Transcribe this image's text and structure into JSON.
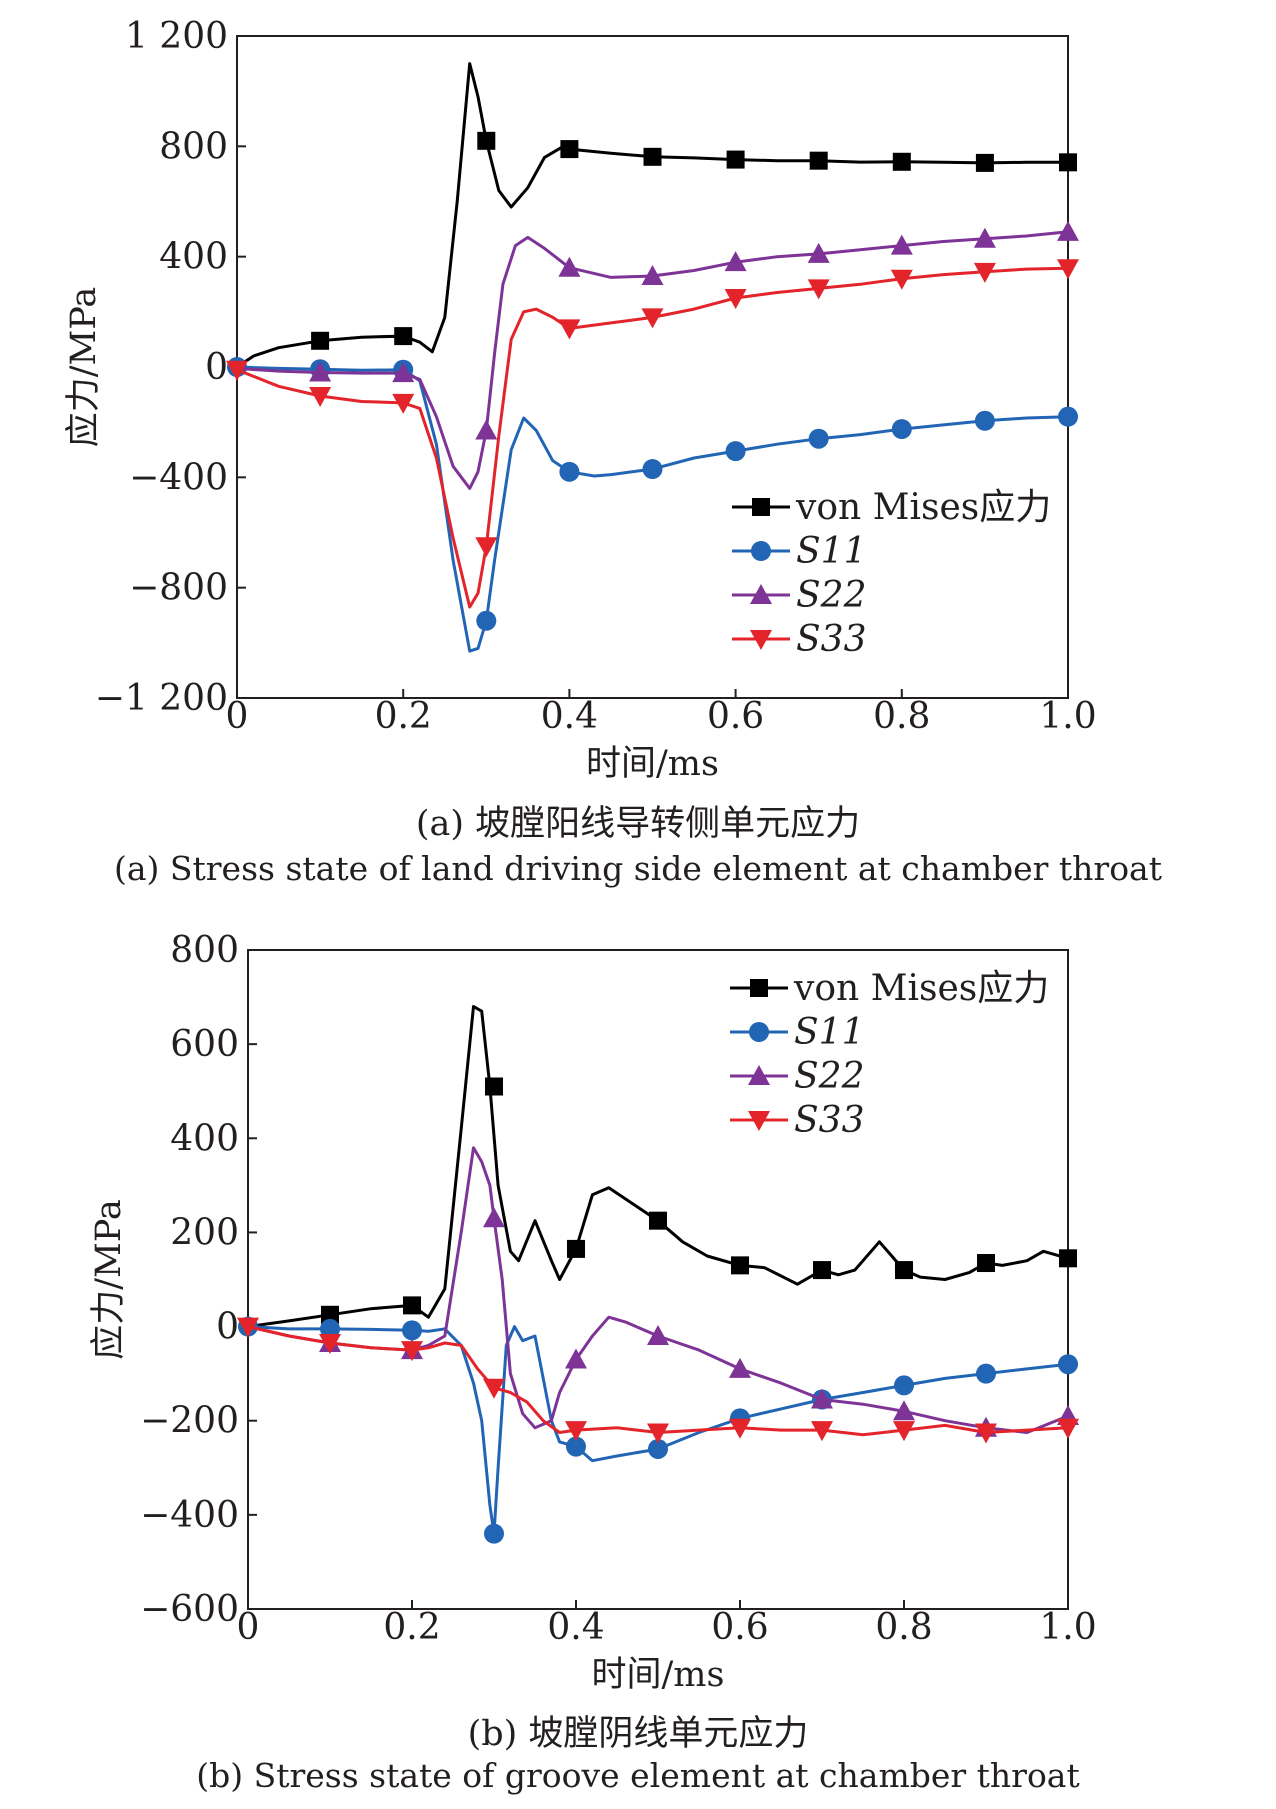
{
  "chart_data": [
    {
      "type": "line",
      "xlabel": "时间/ms",
      "ylabel": "应力/MPa",
      "xlim": [
        0,
        1.0
      ],
      "ylim": [
        -1200,
        1200
      ],
      "x_ticks": [
        0,
        0.2,
        0.4,
        0.6,
        0.8,
        1.0
      ],
      "x_tick_labels": [
        "0",
        "0.2",
        "0.4",
        "0.6",
        "0.8",
        "1.0"
      ],
      "y_ticks": [
        1200,
        800,
        400,
        0,
        -400,
        -800,
        -1200
      ],
      "y_tick_labels": [
        "1 200",
        "800",
        "400",
        "0",
        "−400",
        "−800",
        "−1 200"
      ],
      "legend_position": "bottom-right",
      "caption_zh": "(a) 坡膛阳线导转侧单元应力",
      "caption_en": "(a) Stress state of land driving side element at chamber throat",
      "series": [
        {
          "name": "von Mises应力",
          "color": "#000000",
          "marker": "square",
          "x": [
            0,
            0.02,
            0.05,
            0.1,
            0.15,
            0.2,
            0.22,
            0.235,
            0.25,
            0.265,
            0.28,
            0.29,
            0.3,
            0.315,
            0.33,
            0.35,
            0.37,
            0.39,
            0.4,
            0.45,
            0.5,
            0.55,
            0.6,
            0.65,
            0.7,
            0.75,
            0.8,
            0.85,
            0.9,
            0.95,
            1.0
          ],
          "y": [
            0,
            40,
            70,
            95,
            108,
            112,
            90,
            55,
            180,
            600,
            1100,
            980,
            820,
            640,
            580,
            650,
            760,
            795,
            790,
            775,
            762,
            758,
            752,
            748,
            748,
            743,
            744,
            742,
            740,
            742,
            742
          ],
          "marker_x": [
            0.1,
            0.2,
            0.3,
            0.4,
            0.5,
            0.6,
            0.7,
            0.8,
            0.9,
            1.0
          ],
          "marker_y": [
            95,
            112,
            820,
            790,
            762,
            752,
            748,
            744,
            740,
            742
          ]
        },
        {
          "name": "S11",
          "color": "#2265b5",
          "marker": "circle",
          "x": [
            0,
            0.05,
            0.1,
            0.15,
            0.2,
            0.22,
            0.24,
            0.26,
            0.28,
            0.29,
            0.3,
            0.31,
            0.33,
            0.345,
            0.36,
            0.38,
            0.4,
            0.43,
            0.45,
            0.5,
            0.55,
            0.6,
            0.65,
            0.7,
            0.75,
            0.8,
            0.85,
            0.9,
            0.95,
            1.0
          ],
          "y": [
            0,
            -5,
            -8,
            -12,
            -10,
            -50,
            -280,
            -700,
            -1030,
            -1020,
            -920,
            -700,
            -300,
            -185,
            -230,
            -340,
            -380,
            -395,
            -390,
            -370,
            -330,
            -305,
            -280,
            -260,
            -245,
            -225,
            -210,
            -195,
            -185,
            -180
          ],
          "marker_x": [
            0,
            0.1,
            0.2,
            0.3,
            0.4,
            0.5,
            0.6,
            0.7,
            0.8,
            0.9,
            1.0
          ],
          "marker_y": [
            0,
            -8,
            -10,
            -920,
            -380,
            -370,
            -305,
            -260,
            -225,
            -195,
            -180
          ]
        },
        {
          "name": "S22",
          "color": "#7e3496",
          "marker": "triangle-up",
          "x": [
            0,
            0.05,
            0.1,
            0.15,
            0.2,
            0.22,
            0.24,
            0.26,
            0.28,
            0.29,
            0.3,
            0.31,
            0.32,
            0.335,
            0.35,
            0.37,
            0.4,
            0.45,
            0.5,
            0.55,
            0.6,
            0.65,
            0.7,
            0.75,
            0.8,
            0.85,
            0.9,
            0.95,
            1.0
          ],
          "y": [
            -5,
            -15,
            -20,
            -22,
            -22,
            -45,
            -180,
            -360,
            -440,
            -380,
            -230,
            50,
            300,
            440,
            470,
            430,
            360,
            325,
            330,
            350,
            380,
            400,
            410,
            425,
            440,
            455,
            465,
            475,
            490
          ],
          "marker_x": [
            0.1,
            0.2,
            0.3,
            0.4,
            0.5,
            0.6,
            0.7,
            0.8,
            0.9,
            1.0
          ],
          "marker_y": [
            -20,
            -22,
            -230,
            360,
            330,
            380,
            410,
            440,
            465,
            490
          ]
        },
        {
          "name": "S33",
          "color": "#e3242b",
          "marker": "triangle-down",
          "x": [
            0,
            0.05,
            0.1,
            0.15,
            0.2,
            0.22,
            0.24,
            0.26,
            0.28,
            0.29,
            0.3,
            0.315,
            0.33,
            0.345,
            0.36,
            0.38,
            0.4,
            0.45,
            0.5,
            0.55,
            0.6,
            0.65,
            0.7,
            0.75,
            0.8,
            0.85,
            0.9,
            0.95,
            1.0
          ],
          "y": [
            -10,
            -70,
            -105,
            -125,
            -130,
            -150,
            -330,
            -620,
            -870,
            -820,
            -650,
            -250,
            100,
            200,
            210,
            180,
            140,
            160,
            180,
            210,
            250,
            270,
            285,
            300,
            320,
            335,
            345,
            355,
            358
          ],
          "marker_x": [
            0,
            0.1,
            0.2,
            0.3,
            0.4,
            0.5,
            0.6,
            0.7,
            0.8,
            0.9,
            1.0
          ],
          "marker_y": [
            -10,
            -105,
            -130,
            -650,
            140,
            180,
            250,
            285,
            320,
            345,
            358
          ]
        }
      ]
    },
    {
      "type": "line",
      "xlabel": "时间/ms",
      "ylabel": "应力/MPa",
      "xlim": [
        0,
        1.0
      ],
      "ylim": [
        -600,
        800
      ],
      "x_ticks": [
        0,
        0.2,
        0.4,
        0.6,
        0.8,
        1.0
      ],
      "x_tick_labels": [
        "0",
        "0.2",
        "0.4",
        "0.6",
        "0.8",
        "1.0"
      ],
      "y_ticks": [
        800,
        600,
        400,
        200,
        0,
        -200,
        -400,
        -600
      ],
      "y_tick_labels": [
        "800",
        "600",
        "400",
        "200",
        "0",
        "−200",
        "−400",
        "−600"
      ],
      "legend_position": "top-right",
      "caption_zh": "(b) 坡膛阴线单元应力",
      "caption_en": "(b) Stress state of groove element at chamber throat",
      "series": [
        {
          "name": "von Mises应力",
          "color": "#000000",
          "marker": "square",
          "x": [
            0,
            0.05,
            0.1,
            0.15,
            0.2,
            0.22,
            0.24,
            0.26,
            0.275,
            0.285,
            0.295,
            0.305,
            0.32,
            0.33,
            0.35,
            0.37,
            0.38,
            0.4,
            0.42,
            0.44,
            0.47,
            0.5,
            0.53,
            0.56,
            0.6,
            0.63,
            0.67,
            0.7,
            0.72,
            0.74,
            0.77,
            0.8,
            0.82,
            0.85,
            0.88,
            0.9,
            0.92,
            0.95,
            0.97,
            1.0
          ],
          "y": [
            0,
            12,
            25,
            38,
            45,
            20,
            80,
            420,
            680,
            670,
            510,
            300,
            160,
            140,
            225,
            140,
            100,
            165,
            280,
            295,
            260,
            225,
            180,
            150,
            130,
            125,
            90,
            120,
            110,
            120,
            180,
            120,
            105,
            100,
            115,
            135,
            130,
            140,
            160,
            145
          ],
          "marker_x": [
            0.1,
            0.2,
            0.3,
            0.4,
            0.5,
            0.6,
            0.7,
            0.8,
            0.9,
            1.0
          ],
          "marker_y": [
            25,
            45,
            510,
            165,
            225,
            130,
            120,
            120,
            135,
            145
          ]
        },
        {
          "name": "S11",
          "color": "#2265b5",
          "marker": "circle",
          "x": [
            0,
            0.05,
            0.1,
            0.15,
            0.2,
            0.22,
            0.24,
            0.26,
            0.275,
            0.285,
            0.295,
            0.3,
            0.305,
            0.315,
            0.325,
            0.335,
            0.35,
            0.37,
            0.38,
            0.4,
            0.42,
            0.45,
            0.5,
            0.55,
            0.6,
            0.65,
            0.7,
            0.75,
            0.8,
            0.85,
            0.9,
            0.95,
            1.0
          ],
          "y": [
            0,
            -5,
            -5,
            -6,
            -8,
            -10,
            -5,
            -40,
            -120,
            -200,
            -380,
            -440,
            -300,
            -40,
            0,
            -30,
            -20,
            -200,
            -245,
            -255,
            -285,
            -275,
            -260,
            -225,
            -195,
            -175,
            -155,
            -140,
            -125,
            -110,
            -100,
            -90,
            -80
          ],
          "marker_x": [
            0,
            0.1,
            0.2,
            0.3,
            0.4,
            0.5,
            0.6,
            0.7,
            0.8,
            0.9,
            1.0
          ],
          "marker_y": [
            0,
            -5,
            -8,
            -440,
            -255,
            -260,
            -195,
            -155,
            -125,
            -100,
            -80
          ]
        },
        {
          "name": "S22",
          "color": "#7e3496",
          "marker": "triangle-up",
          "x": [
            0,
            0.05,
            0.1,
            0.15,
            0.2,
            0.22,
            0.24,
            0.26,
            0.275,
            0.285,
            0.295,
            0.3,
            0.31,
            0.32,
            0.335,
            0.35,
            0.37,
            0.38,
            0.4,
            0.42,
            0.44,
            0.46,
            0.5,
            0.55,
            0.6,
            0.65,
            0.7,
            0.75,
            0.8,
            0.85,
            0.9,
            0.95,
            1.0
          ],
          "y": [
            0,
            -20,
            -35,
            -45,
            -50,
            -40,
            -20,
            200,
            380,
            350,
            300,
            230,
            100,
            -100,
            -185,
            -215,
            -200,
            -140,
            -70,
            -20,
            20,
            10,
            -20,
            -50,
            -90,
            -120,
            -155,
            -165,
            -180,
            -200,
            -215,
            -225,
            -190
          ],
          "marker_x": [
            0.1,
            0.2,
            0.3,
            0.4,
            0.5,
            0.6,
            0.7,
            0.8,
            0.9,
            1.0
          ],
          "marker_y": [
            -35,
            -50,
            230,
            -70,
            -20,
            -90,
            -155,
            -180,
            -215,
            -190
          ]
        },
        {
          "name": "S33",
          "color": "#e3242b",
          "marker": "triangle-down",
          "x": [
            0,
            0.05,
            0.1,
            0.15,
            0.2,
            0.22,
            0.24,
            0.26,
            0.28,
            0.3,
            0.32,
            0.34,
            0.36,
            0.38,
            0.4,
            0.45,
            0.5,
            0.55,
            0.6,
            0.65,
            0.7,
            0.75,
            0.8,
            0.85,
            0.9,
            0.95,
            1.0
          ],
          "y": [
            0,
            -20,
            -35,
            -45,
            -50,
            -45,
            -35,
            -40,
            -90,
            -130,
            -140,
            -160,
            -200,
            -225,
            -220,
            -215,
            -225,
            -220,
            -215,
            -220,
            -220,
            -230,
            -220,
            -210,
            -225,
            -220,
            -215
          ],
          "marker_x": [
            0,
            0.1,
            0.2,
            0.3,
            0.4,
            0.5,
            0.6,
            0.7,
            0.8,
            0.9,
            1.0
          ],
          "marker_y": [
            0,
            -35,
            -50,
            -130,
            -220,
            -225,
            -215,
            -220,
            -220,
            -225,
            -215
          ]
        }
      ]
    }
  ]
}
